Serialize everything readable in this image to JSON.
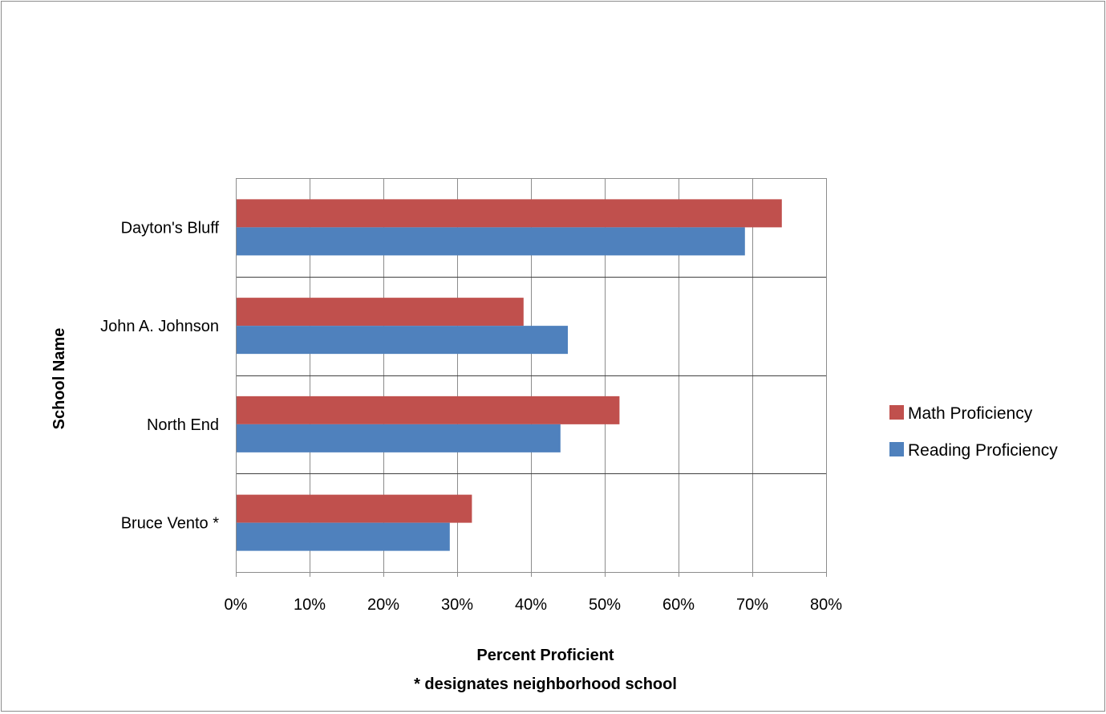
{
  "chart_data": {
    "type": "bar",
    "orientation": "horizontal",
    "categories": [
      "Dayton's Bluff",
      "John A. Johnson",
      "North End",
      "Bruce Vento *"
    ],
    "series": [
      {
        "name": "Math Proficiency",
        "color": "#c0504d",
        "values": [
          74,
          39,
          52,
          32
        ]
      },
      {
        "name": "Reading Proficiency",
        "color": "#4f81bd",
        "values": [
          69,
          45,
          44,
          29
        ]
      }
    ],
    "xlim": [
      0,
      80
    ],
    "xticks": [
      "0%",
      "10%",
      "20%",
      "30%",
      "40%",
      "50%",
      "60%",
      "70%",
      "80%"
    ],
    "xlabel": "Percent Proficient",
    "xlabel_note": "* designates neighborhood school",
    "ylabel": "School Name",
    "grid": true,
    "legend_position": "right"
  }
}
